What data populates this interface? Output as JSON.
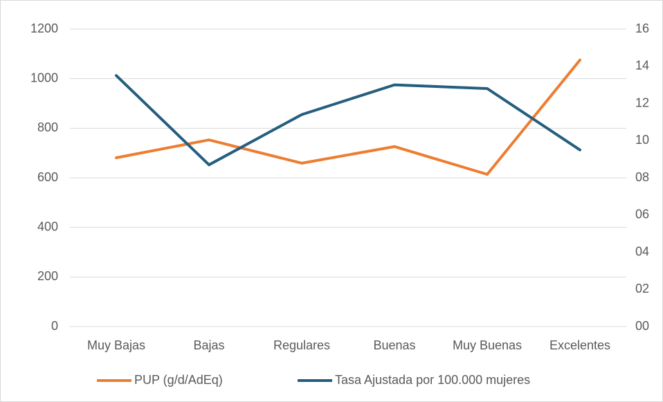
{
  "chart_data": {
    "type": "line",
    "categories": [
      "Muy Bajas",
      "Bajas",
      "Regulares",
      "Buenas",
      "Muy Buenas",
      "Excelentes"
    ],
    "series": [
      {
        "name": "PUP (g/d/AdEq)",
        "color": "#ed7d31",
        "values": [
          681,
          753,
          659,
          726,
          614,
          1075
        ]
      },
      {
        "name": "Tasa Ajustada por 100.000 mujeres",
        "color": "#255e7e",
        "axis": "y2",
        "values": [
          13.5,
          8.7,
          11.4,
          13.0,
          12.8,
          9.5
        ]
      }
    ],
    "ylim": [
      0,
      1200
    ],
    "yticks": [
      0,
      200,
      400,
      600,
      800,
      1000,
      1200
    ],
    "y2lim": [
      0,
      16
    ],
    "y2ticks": [
      {
        "value": 0,
        "label": "00"
      },
      {
        "value": 2,
        "label": "02"
      },
      {
        "value": 4,
        "label": "04"
      },
      {
        "value": 6,
        "label": "06"
      },
      {
        "value": 8,
        "label": "08"
      },
      10,
      12,
      14,
      16
    ],
    "grid": true,
    "legend": "bottom"
  }
}
